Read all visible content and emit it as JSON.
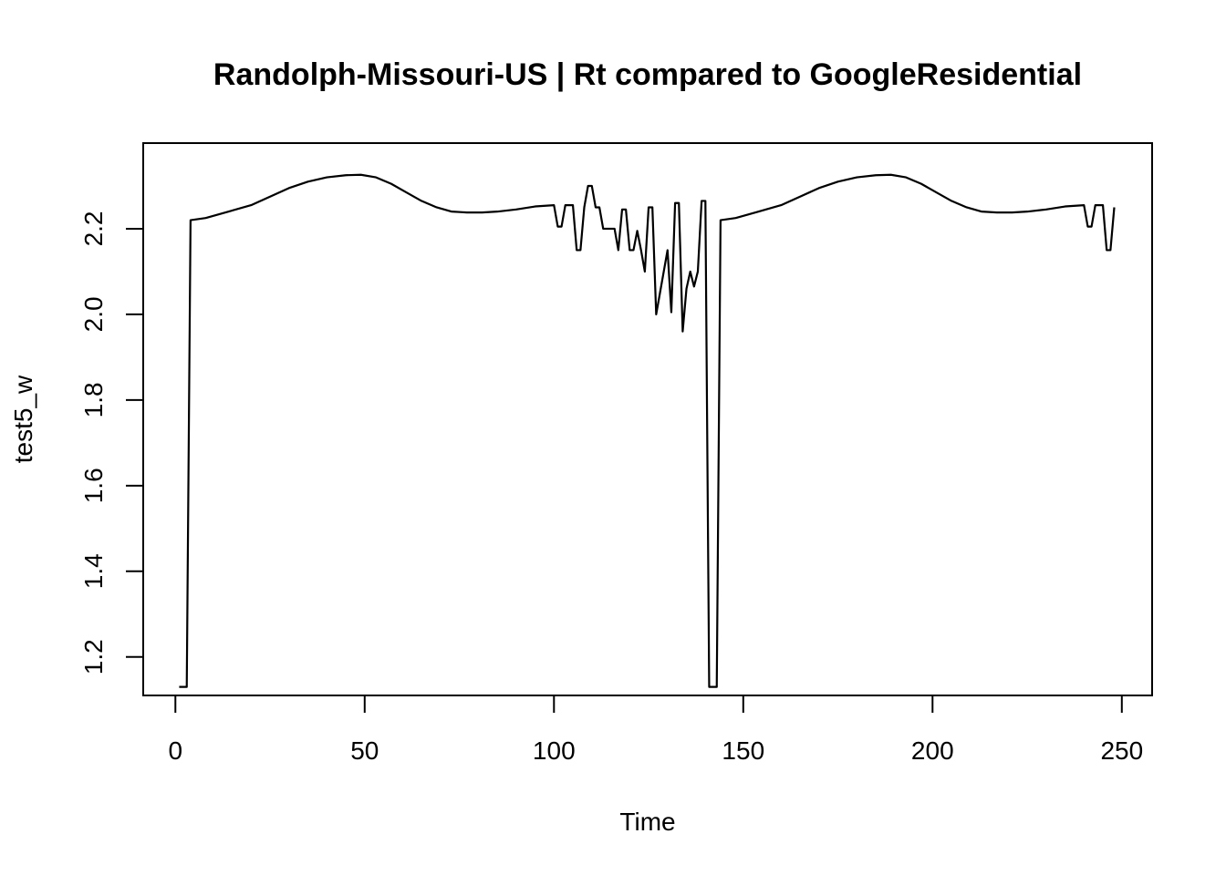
{
  "chart_data": {
    "type": "line",
    "title": "Randolph-Missouri-US | Rt compared to GoogleResidential",
    "xlabel": "Time",
    "ylabel": "test5_w",
    "xlim": [
      -8.5,
      258
    ],
    "ylim": [
      1.11,
      2.4
    ],
    "x_ticks": [
      0,
      50,
      100,
      150,
      200,
      250
    ],
    "y_ticks": [
      1.2,
      1.4,
      1.6,
      1.8,
      2.0,
      2.2
    ],
    "grid": false,
    "legend": "none",
    "line_color": "#000000",
    "series": [
      {
        "x": [
          1,
          2,
          3,
          4,
          8,
          14,
          20,
          25,
          30,
          35,
          40,
          45,
          49,
          53,
          57,
          61,
          65,
          69,
          73,
          77,
          81,
          85,
          90,
          95,
          100,
          101,
          102,
          103,
          104,
          105,
          106,
          107,
          108,
          109,
          110,
          111,
          112,
          113,
          114,
          115,
          116,
          117,
          118,
          119,
          120,
          121,
          122,
          123,
          124,
          125,
          126,
          127,
          128,
          129,
          130,
          131,
          132,
          133,
          134,
          135,
          136,
          137,
          138,
          139,
          140,
          141,
          142,
          143,
          144,
          148,
          154,
          160,
          165,
          170,
          175,
          180,
          185,
          189,
          193,
          197,
          201,
          205,
          209,
          213,
          217,
          221,
          225,
          230,
          235,
          240,
          241,
          242,
          243,
          244,
          245,
          246,
          247,
          248
        ],
        "values": [
          1.13,
          1.13,
          1.13,
          2.22,
          2.225,
          2.24,
          2.255,
          2.275,
          2.295,
          2.31,
          2.32,
          2.325,
          2.326,
          2.32,
          2.305,
          2.285,
          2.265,
          2.25,
          2.24,
          2.238,
          2.238,
          2.24,
          2.245,
          2.252,
          2.255,
          2.205,
          2.205,
          2.255,
          2.255,
          2.255,
          2.15,
          2.15,
          2.25,
          2.3,
          2.3,
          2.25,
          2.25,
          2.2,
          2.2,
          2.2,
          2.2,
          2.15,
          2.245,
          2.245,
          2.15,
          2.15,
          2.195,
          2.15,
          2.1,
          2.25,
          2.25,
          2.0,
          2.05,
          2.1,
          2.15,
          2.005,
          2.26,
          2.26,
          1.96,
          2.06,
          2.1,
          2.065,
          2.1,
          2.265,
          2.265,
          1.13,
          1.13,
          1.13,
          2.22,
          2.225,
          2.24,
          2.255,
          2.275,
          2.295,
          2.31,
          2.32,
          2.325,
          2.326,
          2.32,
          2.305,
          2.285,
          2.265,
          2.25,
          2.24,
          2.238,
          2.238,
          2.24,
          2.245,
          2.252,
          2.255,
          2.205,
          2.205,
          2.255,
          2.255,
          2.255,
          2.15,
          2.15,
          2.25
        ]
      }
    ]
  }
}
